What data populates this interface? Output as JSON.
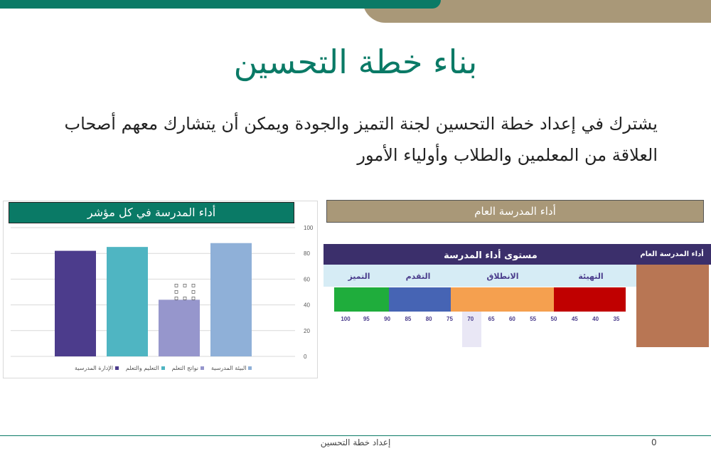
{
  "title": "بناء خطة التحسين",
  "body": {
    "line1": "يشترك في إعداد خطة التحسين لجنة التميز والجودة ويمكن أن يتشارك معهم أصحاب",
    "line2": "العلاقة من المعلمين والطلاب وأولياء الأمور"
  },
  "left_panel": {
    "header": "أداء المدرسة في كل مؤشر"
  },
  "right_panel": {
    "header": "أداء المدرسة العام",
    "table_title": "مستوى أداء المدرسة",
    "side_header": "أداء المدرسة العام",
    "levels": [
      "التميز",
      "التقدم",
      "الانطلاق",
      "التهيئة"
    ],
    "scale": [
      "100",
      "95",
      "90",
      "85",
      "80",
      "75",
      "70",
      "65",
      "60",
      "55",
      "50",
      "45",
      "40",
      "35"
    ],
    "colors": {
      "green": "#1fad3c",
      "blue": "#4664b4",
      "orange": "#f5a04f",
      "red": "#c00000",
      "side": "#b87654",
      "header": "#3b2f6b"
    }
  },
  "chart_data": {
    "type": "bar",
    "categories": [
      "الإدارة المدرسية",
      "التعليم والتعلم",
      "نواتج التعلم",
      "البيئة المدرسية"
    ],
    "values": [
      82,
      85,
      44,
      88
    ],
    "colors": [
      "#4c3c8c",
      "#4fb5c2",
      "#9696cc",
      "#8fb0d8"
    ],
    "ylim": [
      0,
      100
    ],
    "yticks": [
      "0",
      "20",
      "40",
      "60",
      "80",
      "100"
    ],
    "grid": true,
    "legend": "bottom"
  },
  "footer": {
    "text": "إعداد خطة التحسين",
    "page": "0"
  }
}
